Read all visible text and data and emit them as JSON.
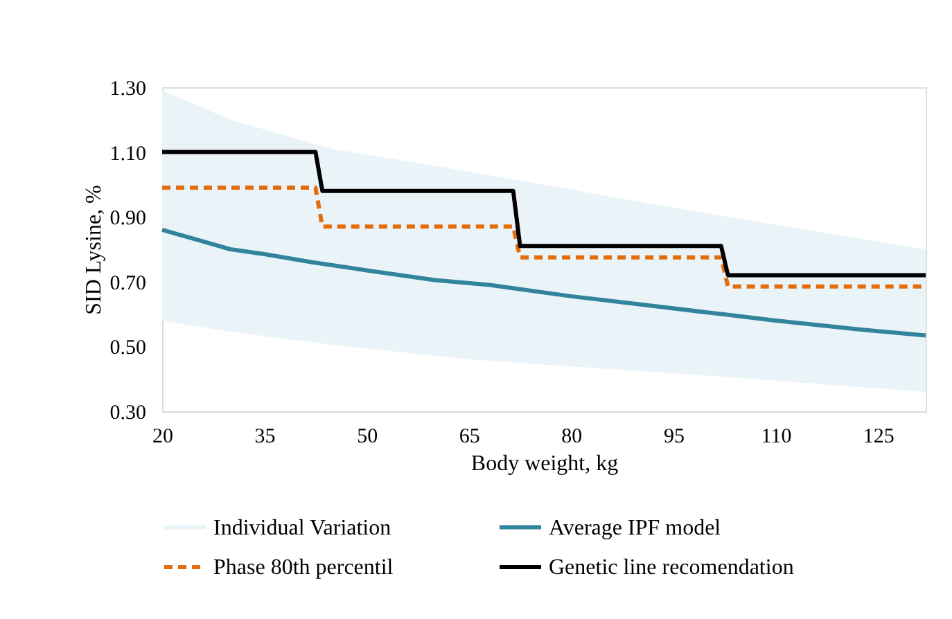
{
  "chart_data": {
    "type": "line",
    "xlabel": "Body weight, kg",
    "ylabel": "SID Lysine, %",
    "xlim": [
      20,
      132
    ],
    "xticks": [
      20,
      35,
      50,
      65,
      80,
      95,
      110,
      125
    ],
    "ylim": [
      0.3,
      1.3
    ],
    "yticks": [
      {
        "value": 0.3,
        "label": "0.30"
      },
      {
        "value": 0.5,
        "label": "0.50"
      },
      {
        "value": 0.7,
        "label": "0.70"
      },
      {
        "value": 0.9,
        "label": "0.90"
      },
      {
        "value": 1.1,
        "label": "1.10"
      },
      {
        "value": 1.3,
        "label": "1.30"
      }
    ],
    "grid": false,
    "legend": "bottom",
    "marker": "none",
    "series": [
      {
        "name": "Individual Variation",
        "type": "area",
        "color": "#eaf4f8",
        "x": [
          20,
          30,
          45,
          65,
          100,
          132
        ],
        "values": [
          null,
          null,
          null,
          null,
          null,
          null
        ],
        "lower": [
          0.58,
          0.545,
          0.505,
          0.46,
          0.41,
          0.36
        ],
        "upper": [
          1.29,
          1.2,
          1.11,
          1.04,
          0.91,
          0.8
        ]
      },
      {
        "name": "Average IPF model",
        "color": "#31849b",
        "line_style": "solid",
        "x": [
          20,
          25,
          30,
          35,
          42,
          50,
          60,
          68,
          80,
          90,
          102,
          110,
          122,
          132
        ],
        "values": [
          0.86,
          0.83,
          0.8,
          0.785,
          0.76,
          0.735,
          0.705,
          0.69,
          0.655,
          0.63,
          0.6,
          0.58,
          0.553,
          0.534
        ]
      },
      {
        "name": "Phase 80th percentil",
        "color": "#e46c0a",
        "line_style": "dashed",
        "x": [
          20,
          42.5,
          43.5,
          71.5,
          72.5,
          102,
          103,
          132
        ],
        "values": [
          0.99,
          0.99,
          0.87,
          0.87,
          0.775,
          0.775,
          0.685,
          0.685
        ]
      },
      {
        "name": "Genetic line recomendation",
        "color": "#000000",
        "line_style": "solid",
        "x": [
          20,
          42.5,
          43.5,
          71.5,
          72.5,
          102,
          103,
          132
        ],
        "values": [
          1.1,
          1.1,
          0.98,
          0.98,
          0.81,
          0.81,
          0.72,
          0.72
        ]
      }
    ]
  }
}
